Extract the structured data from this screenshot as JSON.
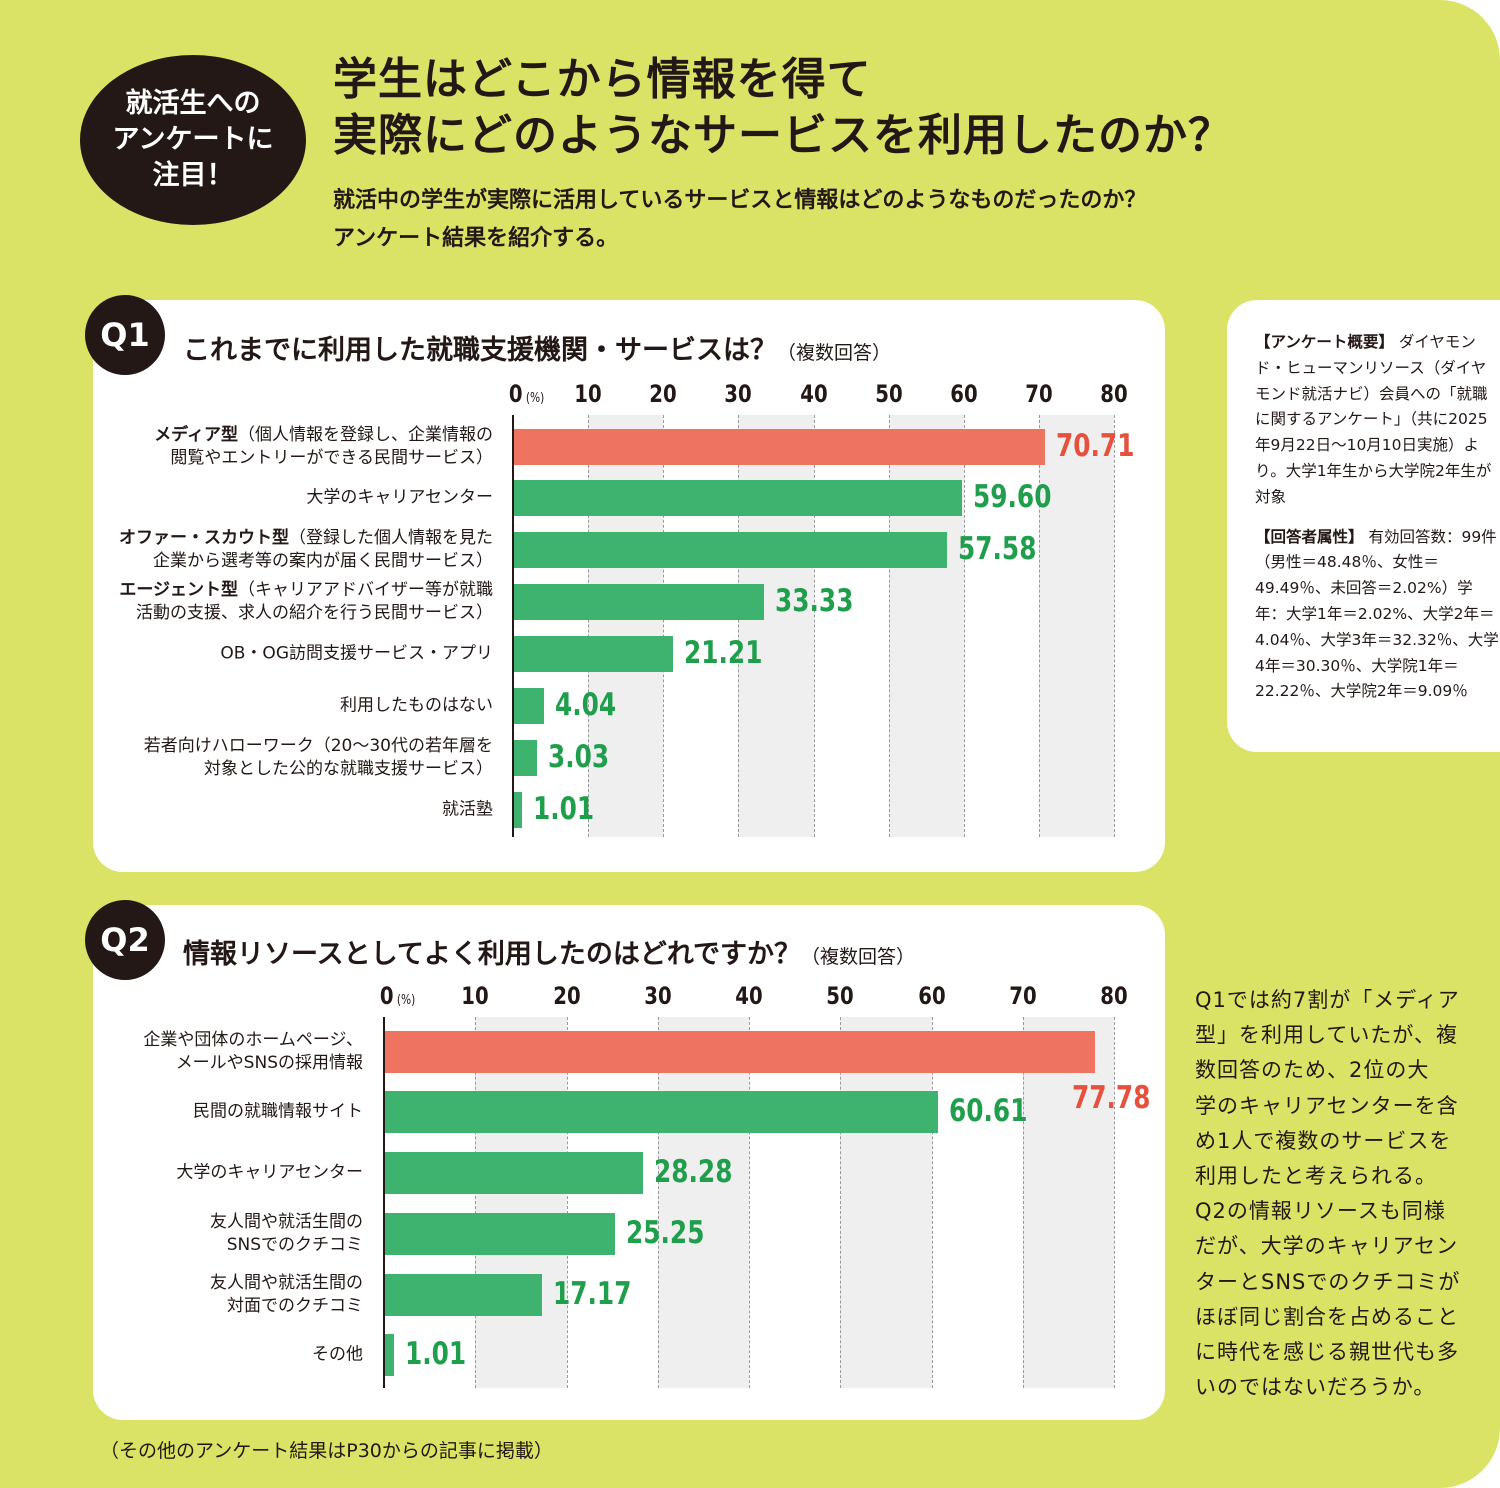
{
  "colors": {
    "background": "#dae366",
    "highlight": "#ee7461",
    "bar": "#3db36f",
    "value_text": "#1f9e4b",
    "highlight_text": "#e5513d"
  },
  "badge": "就活生への\nアンケートに\n注目！",
  "title": "学生はどこから情報を得て\n実際にどのようなサービスを利用したのか？",
  "subtitle": "就活中の学生が実際に活用しているサービスと情報はどのようなものだったのか？\nアンケート結果を紹介する。",
  "summary": {
    "head1": "【アンケート概要】",
    "body1": "ダイヤモンド・ヒューマンリソース（ダイヤモンド就活ナビ）会員への「就職に関するアンケート」（共に2025年9月22日～10月10日実施）より。大学1年生から大学院2年生が対象",
    "head2": "【回答者属性】",
    "body2": "有効回答数：99件（男性＝48.48％、女性＝49.49％、未回答＝2.02%）学年：大学1年＝2.02%、大学2年＝4.04％、大学3年＝32.32％、大学4年＝30.30％、大学院1年＝22.22％、大学院2年＝9.09％"
  },
  "comment": "Q1では約7割が「メディア\n型」を利用していたが、複\n数回答のため、2位の大\n学のキャリアセンターを含\nめ1人で複数のサービスを\n利用したと考えられる。\nQ2の情報リソースも同様\nだが、大学のキャリアセン\nターとSNSでのクチコミが\nほぼ同じ割合を占めること\nに時代を感じる親世代も多\nいのではないだろうか。",
  "footnote": "（その他のアンケート結果はP30からの記事に掲載）",
  "chart_data": [
    {
      "type": "bar",
      "orientation": "horizontal",
      "qnum": "Q1",
      "title": "これまでに利用した就職支援機関・サービスは？",
      "title_note": "（複数回答）",
      "unit": "(%)",
      "xlim": [
        0,
        80
      ],
      "ticks": [
        "0",
        "10",
        "20",
        "30",
        "40",
        "50",
        "60",
        "70",
        "80"
      ],
      "categories": [
        {
          "bold": "メディア型",
          "text": "（個人情報を登録し、企業情報の\n閲覧やエントリーができる民間サービス）"
        },
        {
          "bold": "",
          "text": "大学のキャリアセンター"
        },
        {
          "bold": "オファー・スカウト型",
          "text": "（登録した個人情報を見た\n企業から選考等の案内が届く民間サービス）"
        },
        {
          "bold": "エージェント型",
          "text": "（キャリアアドバイザー等が就職\n活動の支援、求人の紹介を行う民間サービス）"
        },
        {
          "bold": "",
          "text": "OB・OG訪問支援サービス・アプリ"
        },
        {
          "bold": "",
          "text": "利用したものはない"
        },
        {
          "bold": "",
          "text": "若者向けハローワーク（20～30代の若年層を\n対象とした公的な就職支援サービス）"
        },
        {
          "bold": "",
          "text": "就活塾"
        }
      ],
      "values": [
        70.71,
        59.6,
        57.58,
        33.33,
        21.21,
        4.04,
        3.03,
        1.01
      ],
      "labels": [
        "70.71",
        "59.60",
        "57.58",
        "33.33",
        "21.21",
        "4.04",
        "3.03",
        "1.01"
      ],
      "highlight_index": 0
    },
    {
      "type": "bar",
      "orientation": "horizontal",
      "qnum": "Q2",
      "title": "情報リソースとしてよく利用したのはどれですか？",
      "title_note": "（複数回答）",
      "unit": "(%)",
      "xlim": [
        0,
        80
      ],
      "ticks": [
        "0",
        "10",
        "20",
        "30",
        "40",
        "50",
        "60",
        "70",
        "80"
      ],
      "categories": [
        {
          "bold": "",
          "text": "企業や団体のホームページ、\nメールやSNSの採用情報"
        },
        {
          "bold": "",
          "text": "民間の就職情報サイト"
        },
        {
          "bold": "",
          "text": "大学のキャリアセンター"
        },
        {
          "bold": "",
          "text": "友人間や就活生間の\nSNSでのクチコミ"
        },
        {
          "bold": "",
          "text": "友人間や就活生間の\n対面でのクチコミ"
        },
        {
          "bold": "",
          "text": "その他"
        }
      ],
      "values": [
        77.78,
        60.61,
        28.28,
        25.25,
        17.17,
        1.01
      ],
      "labels": [
        "77.78",
        "60.61",
        "28.28",
        "25.25",
        "17.17",
        "1.01"
      ],
      "highlight_index": 0
    }
  ]
}
